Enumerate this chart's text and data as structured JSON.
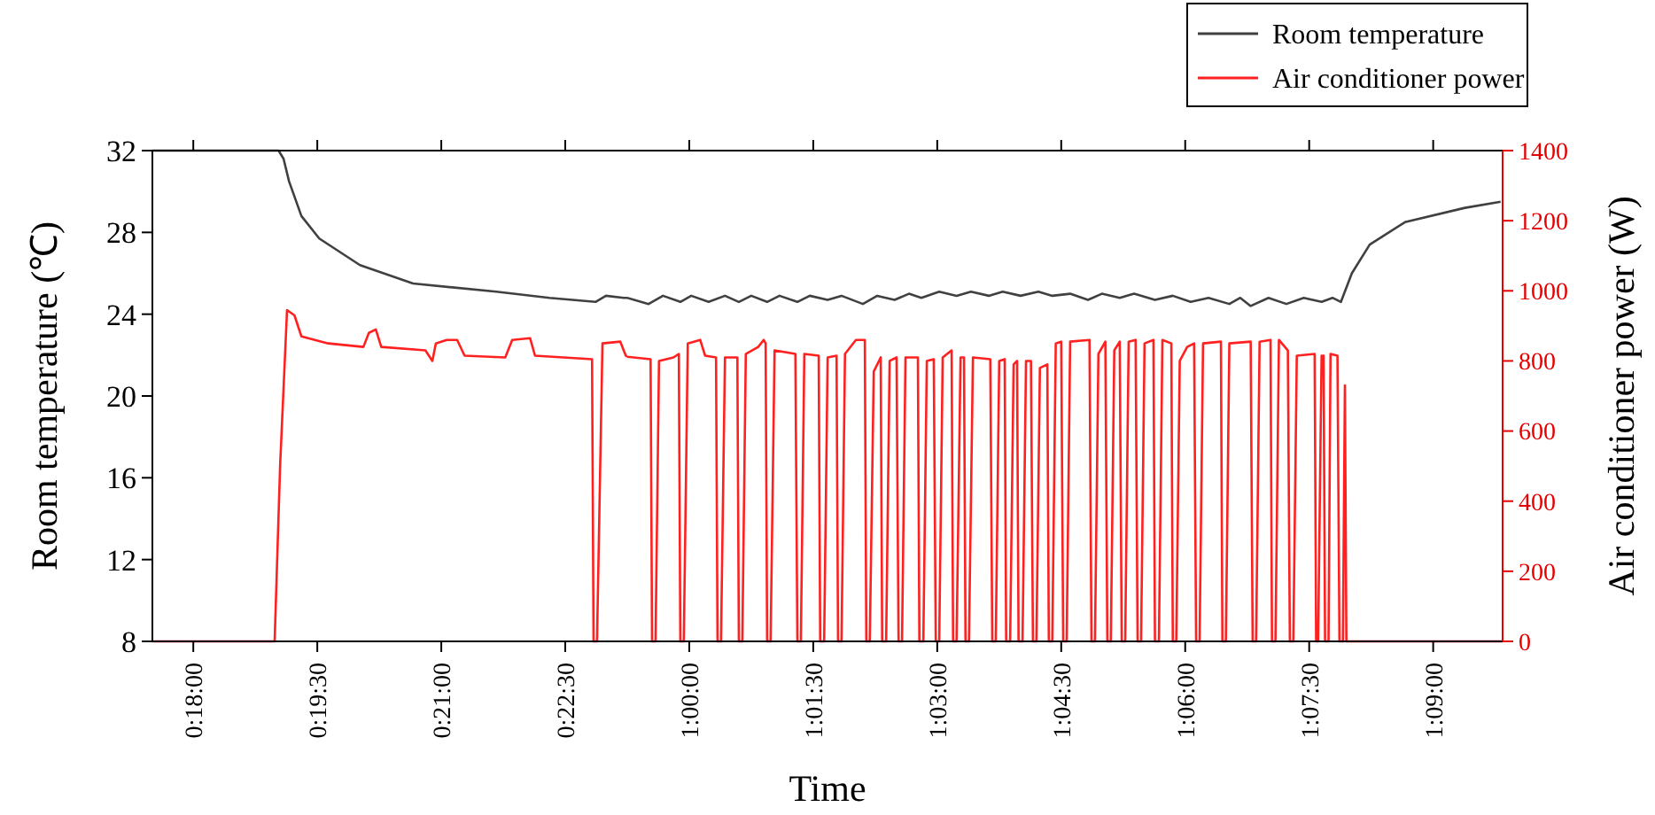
{
  "chart_data": [
    {
      "type": "line",
      "ylabel": "Room temperature (℃)",
      "xlim": [
        0.29175,
        0.3875
      ],
      "xticks": [
        {
          "value": 0.3,
          "label": "0:18:00"
        },
        {
          "value": 0.325,
          "label": "0:19:30"
        },
        {
          "value": 0.35,
          "label": "0:21:00"
        },
        {
          "value": 0.375,
          "label": "0:22:30"
        }
      ],
      "ylim": [
        8,
        32
      ],
      "yticks": [
        8,
        12,
        16,
        20,
        24,
        28,
        32
      ],
      "y2lim": [
        0,
        1400
      ],
      "series": [
        {
          "color": "#404040",
          "x": [
            0.29175,
            0.3172,
            0.3182,
            0.3193,
            0.3218,
            0.3254,
            0.3336,
            0.3443,
            0.3611,
            0.3718,
            0.3811,
            0.3832,
            0.3868,
            0.3875
          ],
          "values": [
            32,
            32,
            31.6,
            30.5,
            28.8,
            27.7,
            26.4,
            25.5,
            25.1,
            24.8,
            24.6,
            24.9,
            24.8,
            24.8
          ]
        },
        {
          "color": "#ff2020",
          "axis": "y2",
          "x": [
            0.29175,
            0.3164,
            0.3175,
            0.3189,
            0.3204,
            0.3218,
            0.3272,
            0.3343,
            0.3354,
            0.3368,
            0.3379,
            0.3468,
            0.3482,
            0.3489,
            0.3511,
            0.3532,
            0.3547,
            0.3629,
            0.3643,
            0.3679,
            0.3689,
            0.3804,
            0.3807,
            0.3814,
            0.3825,
            0.3861,
            0.3872,
            0.3875
          ],
          "values": [
            0,
            0,
            500,
            945,
            930,
            870,
            850,
            840,
            880,
            890,
            840,
            830,
            800,
            850,
            860,
            860,
            815,
            810,
            860,
            865,
            815,
            805,
            0,
            0,
            850,
            855,
            815,
            812
          ]
        }
      ]
    },
    {
      "type": "line",
      "xlabel": "Time",
      "y2label": "Air conditioner power (W)",
      "xlim": [
        0.9875,
        1.164
      ],
      "xticks": [
        {
          "value": 1,
          "label": "1:00:00"
        },
        {
          "value": 1.025,
          "label": "1:01:30"
        },
        {
          "value": 1.05,
          "label": "1:03:00"
        },
        {
          "value": 1.075,
          "label": "1:04:30"
        },
        {
          "value": 1.1,
          "label": "1:06:00"
        },
        {
          "value": 1.125,
          "label": "1:07:30"
        },
        {
          "value": 1.15,
          "label": "1:09:00"
        }
      ],
      "ylim": [
        8,
        32
      ],
      "y2lim": [
        0,
        1400
      ],
      "y2ticks": [
        0,
        200,
        400,
        600,
        800,
        1000,
        1200,
        1400
      ],
      "legend": "top right",
      "series": [
        {
          "name": "Room temperature",
          "color": "#404040",
          "x": [
            0.9875,
            0.9918,
            0.9947,
            0.9982,
            1.0004,
            1.0039,
            1.0072,
            1.01,
            1.0125,
            1.0157,
            1.0182,
            1.0218,
            1.0243,
            1.0279,
            1.0307,
            1.035,
            1.0379,
            1.0414,
            1.0443,
            1.0468,
            1.0504,
            1.0539,
            1.0568,
            1.0604,
            1.0632,
            1.0668,
            1.0704,
            1.0732,
            1.0768,
            1.0804,
            1.0832,
            1.0868,
            1.0897,
            1.0939,
            1.0975,
            1.1011,
            1.1047,
            1.1089,
            1.1111,
            1.1132,
            1.1168,
            1.1204,
            1.1239,
            1.1275,
            1.1297,
            1.1314,
            1.1336,
            1.1372,
            1.1443,
            1.1564,
            1.1636
          ],
          "values": [
            24.8,
            24.5,
            24.9,
            24.6,
            24.9,
            24.6,
            24.9,
            24.6,
            24.9,
            24.6,
            24.9,
            24.6,
            24.9,
            24.7,
            24.9,
            24.5,
            24.9,
            24.7,
            25.0,
            24.8,
            25.1,
            24.9,
            25.1,
            24.9,
            25.1,
            24.9,
            25.1,
            24.9,
            25.0,
            24.7,
            25.0,
            24.8,
            25.0,
            24.7,
            24.9,
            24.6,
            24.8,
            24.5,
            24.8,
            24.4,
            24.8,
            24.5,
            24.8,
            24.6,
            24.8,
            24.6,
            26.0,
            27.4,
            28.5,
            29.2,
            29.5
          ]
        },
        {
          "name": "Air conditioner power",
          "color": "#ff2020",
          "axis": "y2",
          "x": [
            0.9875,
            0.9922,
            0.9925,
            0.9932,
            0.9939,
            0.9968,
            0.9979,
            0.9982,
            0.9989,
            0.9997,
            1.0022,
            1.0032,
            1.0054,
            1.0057,
            1.0064,
            1.0072,
            1.0097,
            1.01,
            1.0107,
            1.0114,
            1.0139,
            1.015,
            1.0154,
            1.0157,
            1.0164,
            1.0172,
            1.0214,
            1.0218,
            1.0225,
            1.0232,
            1.0261,
            1.0264,
            1.0272,
            1.0279,
            1.0297,
            1.03,
            1.0307,
            1.0314,
            1.0336,
            1.0354,
            1.0357,
            1.0364,
            1.0372,
            1.0386,
            1.0389,
            1.0397,
            1.0404,
            1.0418,
            1.0422,
            1.0429,
            1.0436,
            1.0461,
            1.0464,
            1.0472,
            1.0479,
            1.0493,
            1.0497,
            1.0504,
            1.0511,
            1.0529,
            1.0532,
            1.0539,
            1.0547,
            1.0554,
            1.0557,
            1.0564,
            1.0572,
            1.0607,
            1.0611,
            1.0618,
            1.0625,
            1.0636,
            1.0639,
            1.0647,
            1.0654,
            1.0661,
            1.0664,
            1.0672,
            1.0679,
            1.0689,
            1.0693,
            1.07,
            1.0707,
            1.0722,
            1.0725,
            1.0732,
            1.0739,
            1.075,
            1.0754,
            1.0761,
            1.0768,
            1.0807,
            1.0811,
            1.0818,
            1.0825,
            1.0839,
            1.0843,
            1.085,
            1.0857,
            1.0868,
            1.0872,
            1.0879,
            1.0886,
            1.09,
            1.0904,
            1.0911,
            1.0918,
            1.0936,
            1.0939,
            1.0947,
            1.0954,
            1.0972,
            1.0975,
            1.0982,
            1.0989,
            1.1004,
            1.1018,
            1.1022,
            1.1029,
            1.1036,
            1.1072,
            1.1075,
            1.1082,
            1.1089,
            1.1132,
            1.1136,
            1.1143,
            1.115,
            1.1172,
            1.1175,
            1.1182,
            1.1189,
            1.1207,
            1.1211,
            1.1218,
            1.1225,
            1.1261,
            1.1264,
            1.1268,
            1.1275,
            1.1279,
            1.1282,
            1.1289,
            1.1293,
            1.1307,
            1.1311,
            1.1318,
            1.1322,
            1.1325,
            1.164
          ],
          "values": [
            812,
            805,
            0,
            0,
            800,
            810,
            820,
            0,
            0,
            850,
            860,
            815,
            810,
            0,
            0,
            810,
            810,
            0,
            0,
            820,
            840,
            860,
            850,
            0,
            0,
            830,
            820,
            0,
            0,
            820,
            815,
            0,
            0,
            810,
            815,
            0,
            0,
            820,
            860,
            860,
            0,
            0,
            770,
            810,
            0,
            0,
            800,
            810,
            0,
            0,
            810,
            810,
            0,
            0,
            800,
            805,
            0,
            0,
            810,
            830,
            0,
            0,
            810,
            810,
            0,
            0,
            810,
            805,
            0,
            0,
            800,
            805,
            0,
            0,
            790,
            800,
            0,
            0,
            800,
            800,
            0,
            0,
            780,
            790,
            0,
            0,
            850,
            855,
            0,
            0,
            855,
            860,
            0,
            0,
            820,
            855,
            0,
            0,
            830,
            855,
            0,
            0,
            855,
            860,
            0,
            0,
            850,
            860,
            0,
            0,
            860,
            850,
            0,
            0,
            800,
            840,
            850,
            0,
            0,
            850,
            855,
            0,
            0,
            850,
            855,
            0,
            0,
            855,
            860,
            0,
            0,
            860,
            830,
            0,
            0,
            815,
            820,
            0,
            0,
            815,
            815,
            0,
            0,
            820,
            815,
            0,
            0,
            730,
            0,
            0
          ]
        }
      ]
    }
  ]
}
